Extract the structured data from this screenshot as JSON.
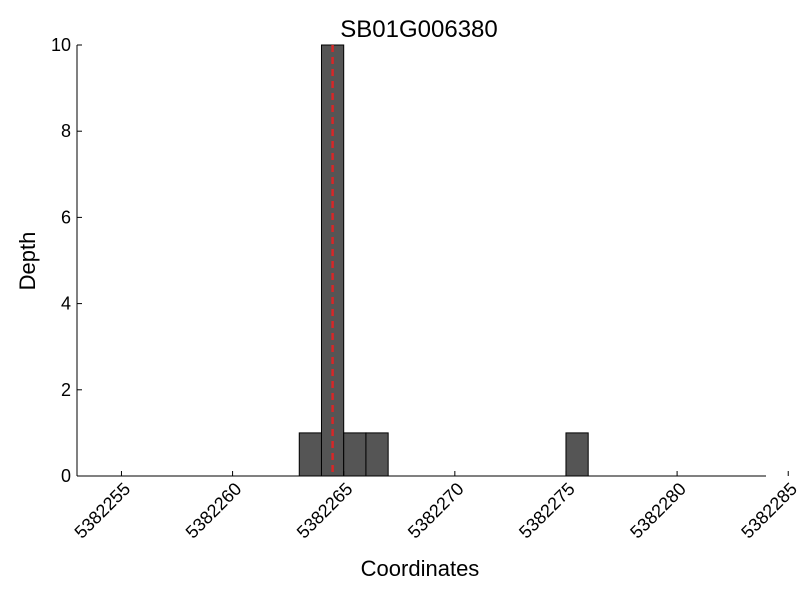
{
  "chart_data": {
    "type": "bar",
    "title": "SB01G006380",
    "xlabel": "Coordinates",
    "ylabel": "Depth",
    "xlim": [
      5382253,
      5382284
    ],
    "ylim": [
      0,
      10
    ],
    "xticks": [
      5382255,
      5382260,
      5382265,
      5382270,
      5382275,
      5382280,
      5382285
    ],
    "yticks": [
      0,
      2,
      4,
      6,
      8,
      10
    ],
    "bar_width": 1,
    "bars": [
      {
        "x": 5382263,
        "value": 1
      },
      {
        "x": 5382264,
        "value": 10
      },
      {
        "x": 5382265,
        "value": 1
      },
      {
        "x": 5382266,
        "value": 1
      },
      {
        "x": 5382275,
        "value": 1
      }
    ],
    "marker_line": {
      "x": 5382264.5,
      "style": "dashed",
      "color": "#d62728"
    },
    "bar_color": "#555555",
    "grid": false
  }
}
